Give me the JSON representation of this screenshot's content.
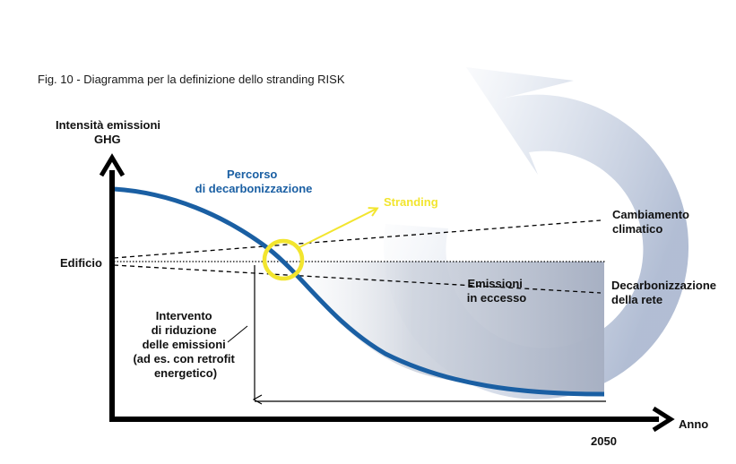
{
  "figure": {
    "caption": "Fig. 10 - Diagramma per la definizione dello stranding RISK",
    "y_axis_label": [
      "Intensità emissioni",
      "GHG"
    ],
    "x_axis_label": "Anno",
    "x_tick_label": "2050",
    "edificio_label": "Edificio",
    "pathway_label": [
      "Percorso",
      "di decarbonizzazione"
    ],
    "stranding_label": "Stranding",
    "climate_label": [
      "Cambiamento",
      "climatico"
    ],
    "grid_label": [
      "Decarbonizzazione",
      "della rete"
    ],
    "excess_label": [
      "Emissioni",
      "in eccesso"
    ],
    "intervention_label": [
      "Intervento",
      "di riduzione",
      "delle emissioni",
      "(ad es. con retrofit",
      "energetico)"
    ]
  },
  "colors": {
    "pathway": "#1a5fa3",
    "stranding": "#f2e52e",
    "excess_area": "#b4bccb",
    "cycle_arrow": "#b9c4d9",
    "axes": "#000000"
  },
  "icons": {
    "cycle": "circular-arrow-icon"
  }
}
